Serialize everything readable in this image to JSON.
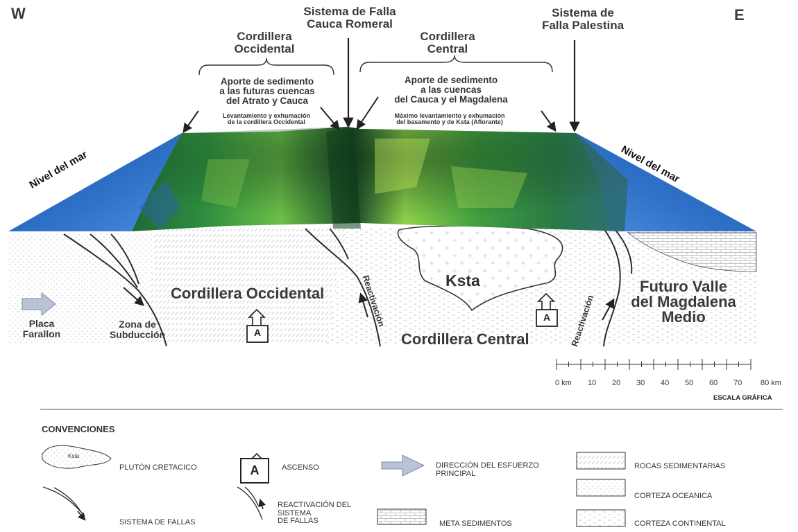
{
  "compass": {
    "west": "W",
    "east": "E"
  },
  "top_labels": {
    "falla_cauca": [
      "Sistema de Falla",
      "Cauca Romeral"
    ],
    "falla_palestina": [
      "Sistema de",
      "Falla Palestina"
    ],
    "cord_occ": [
      "Cordillera",
      "Occidental"
    ],
    "cord_cen": [
      "Cordillera",
      "Central"
    ],
    "aporte_occ": [
      "Aporte de sedimento",
      "a las futuras cuencas",
      "del Atrato y Cauca"
    ],
    "levant_occ": [
      "Levantamiento y exhumación",
      "de la cordillera Occidental"
    ],
    "aporte_cen": [
      "Aporte de sedimento",
      "a las  cuencas",
      "del Cauca y el Magdalena"
    ],
    "levant_cen": [
      "Máximo levantamiento y exhumación",
      "del basamento y de Ksta (Aflorante)"
    ]
  },
  "nivel_mar": "Nivel del mar",
  "section_labels": {
    "cord_occ": "Cordillera Occidental",
    "cord_cen": "Cordillera Central",
    "ksta": "Ksta",
    "placa": [
      "Placa",
      "Farallon"
    ],
    "zona": [
      "Zona de",
      "Subducción"
    ],
    "reactivacion": "Reactivación",
    "valle": [
      "Futuro Valle",
      "del Magdalena",
      "Medio"
    ],
    "ascenso_letter": "A"
  },
  "scale": {
    "ticks": [
      "0 km",
      "10",
      "20",
      "30",
      "40",
      "50",
      "60",
      "70",
      "80 km"
    ],
    "title": "ESCALA GRÁFICA"
  },
  "legend": {
    "title": "CONVENCIONES",
    "items": {
      "pluton": "PLUTÓN CRETACICO",
      "pluton_tag": "Ksta",
      "ascenso": "ASCENSO",
      "ascenso_tag": "A",
      "direccion": [
        "DIRECCIÓN DEL ESFUERZO",
        "PRINCIPAL"
      ],
      "sedimentarias": "ROCAS SEDIMENTARIAS",
      "oceanica": "CORTEZA OCEANICA",
      "fallas": "SISTEMA DE FALLAS",
      "reactivacion": [
        "REACTIVACIÓN DEL",
        "SISTEMA",
        "DE FALLAS"
      ],
      "meta": "META SEDIMENTOS",
      "continental": "CORTEZA CONTINENTAL"
    }
  },
  "colors": {
    "sea": "#2f6fc4",
    "terrain_dark": "#0f3b1c",
    "terrain_mid": "#2e8f3a",
    "terrain_light": "#8fd24a",
    "arrow_fill": "#b8c4d6"
  }
}
